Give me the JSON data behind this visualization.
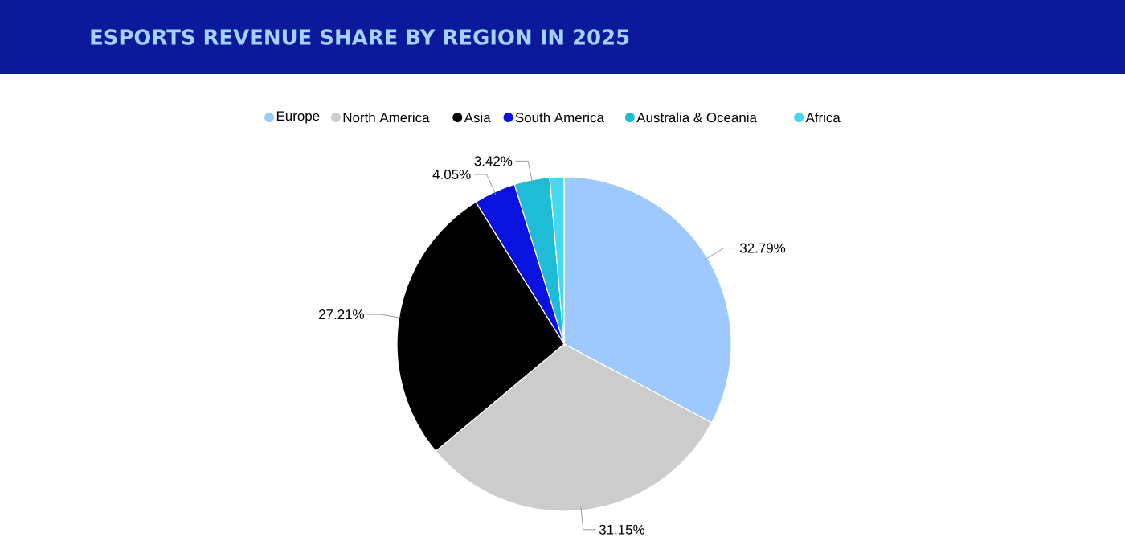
{
  "chart_data": {
    "type": "pie",
    "title": "ESPORTS REVENUE SHARE BY REGION IN 2025",
    "categories": [
      "Europe",
      "North America",
      "Asia",
      "South America",
      "Australia & Oceania",
      "Africa"
    ],
    "values": [
      32.79,
      31.15,
      27.21,
      4.05,
      3.42,
      1.38
    ],
    "colors": [
      "#9ec9ff",
      "#cccccc",
      "#000000",
      "#0a12e0",
      "#1fbcd8",
      "#45d8f0"
    ],
    "value_labels": [
      "32.79%",
      "31.15%",
      "27.21%",
      "4.05%",
      "3.42%",
      null
    ],
    "legend": "top"
  }
}
